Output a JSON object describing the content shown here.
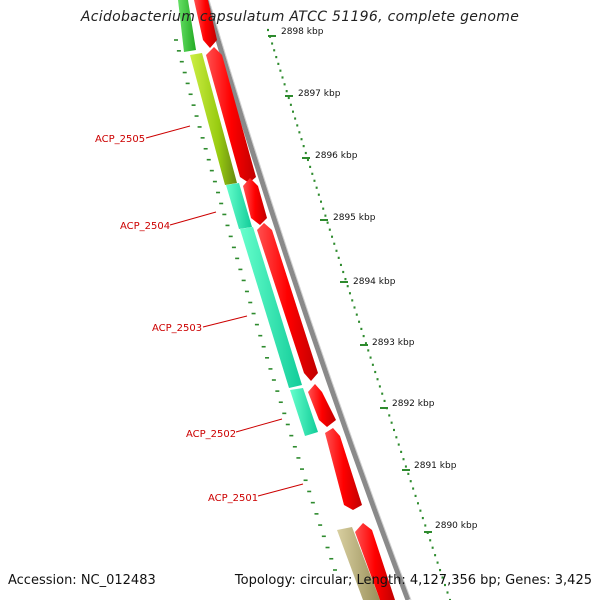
{
  "title": "Acidobacterium capsulatum ATCC 51196, complete genome",
  "footer": {
    "accession": "Accession: NC_012483",
    "summary": "Topology: circular; Length: 4,127,356 bp; Genes: 3,425"
  },
  "scale": {
    "ticks": [
      "2898 kbp",
      "2897 kbp",
      "2896 kbp",
      "2895 kbp",
      "2894 kbp",
      "2893 kbp",
      "2892 kbp",
      "2891 kbp",
      "2890 kbp"
    ]
  },
  "genes": [
    {
      "label": "ACP_2505",
      "color": "#cc0000"
    },
    {
      "label": "ACP_2504",
      "color": "#cc0000"
    },
    {
      "label": "ACP_2503",
      "color": "#cc0000"
    },
    {
      "label": "ACP_2502",
      "color": "#cc0000"
    },
    {
      "label": "ACP_2501",
      "color": "#cc0000"
    }
  ],
  "colors": {
    "cds": "#ff1a1a",
    "backbone": "#888888",
    "tick": "#2e8b2e",
    "cog_green": "#33cc33",
    "cog_yellowgreen": "#aadd22",
    "cog_cyan": "#22ddaa",
    "cog_khaki": "#bbb07a"
  }
}
